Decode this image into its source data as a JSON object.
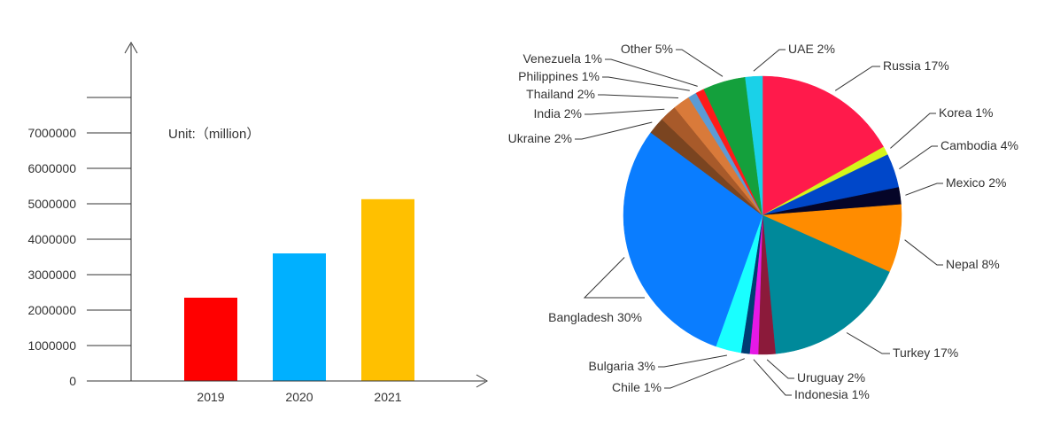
{
  "chart_data": [
    {
      "type": "bar",
      "unit_label": "Unit:（million）",
      "categories": [
        "2019",
        "2020",
        "2021"
      ],
      "values": [
        2350000,
        3600000,
        5130000
      ],
      "ylim": [
        0,
        8000000
      ],
      "yticks": [
        "0",
        "1000000",
        "2000000",
        "3000000",
        "4000000",
        "5000000",
        "6000000",
        "7000000"
      ],
      "colors": [
        "#ff0000",
        "#00b0ff",
        "#ffc000"
      ],
      "grid": false
    },
    {
      "type": "pie",
      "slices": [
        {
          "name": "Russia",
          "label": "Russia  17%",
          "value": 17,
          "color": "#ff1a4b"
        },
        {
          "name": "Korea",
          "label": "Korea 1%",
          "value": 1,
          "color": "#d4f51a"
        },
        {
          "name": "Cambodia",
          "label": "Cambodia 4%",
          "value": 4,
          "color": "#0047c9"
        },
        {
          "name": "Mexico",
          "label": "Mexico 2%",
          "value": 2,
          "color": "#050528"
        },
        {
          "name": "Nepal",
          "label": "Nepal 8%",
          "value": 8,
          "color": "#ff8c00"
        },
        {
          "name": "Turkey",
          "label": "Turkey 17%",
          "value": 17,
          "color": "#00899a"
        },
        {
          "name": "Uruguay",
          "label": "Uruguay 2%",
          "value": 2,
          "color": "#8b1a3a"
        },
        {
          "name": "Indonesia",
          "label": "Indonesia 1%",
          "value": 1,
          "color": "#e619e6"
        },
        {
          "name": "Chile",
          "label": "Chile 1%",
          "value": 1,
          "color": "#003d73"
        },
        {
          "name": "Bulgaria",
          "label": "Bulgaria  3%",
          "value": 3,
          "color": "#19ffff"
        },
        {
          "name": "Bangladesh",
          "label": "Bangladesh 30%",
          "value": 30,
          "color": "#0a7dff"
        },
        {
          "name": "Ukraine",
          "label": "Ukraine 2%",
          "value": 2,
          "color": "#7a4420"
        },
        {
          "name": "India",
          "label": "India 2%",
          "value": 2,
          "color": "#a85a2a"
        },
        {
          "name": "Thailand",
          "label": "Thailand 2%",
          "value": 2,
          "color": "#d97a3a"
        },
        {
          "name": "Philippines",
          "label": "Philippines  1%",
          "value": 1,
          "color": "#5b9bd5"
        },
        {
          "name": "Venezuela",
          "label": "Venezuela  1%",
          "value": 1,
          "color": "#ff1a1a"
        },
        {
          "name": "Other",
          "label": "Other 5%",
          "value": 5,
          "color": "#14a03c"
        },
        {
          "name": "UAE",
          "label": "UAE 2%",
          "value": 2,
          "color": "#1ad1e8"
        }
      ]
    }
  ]
}
